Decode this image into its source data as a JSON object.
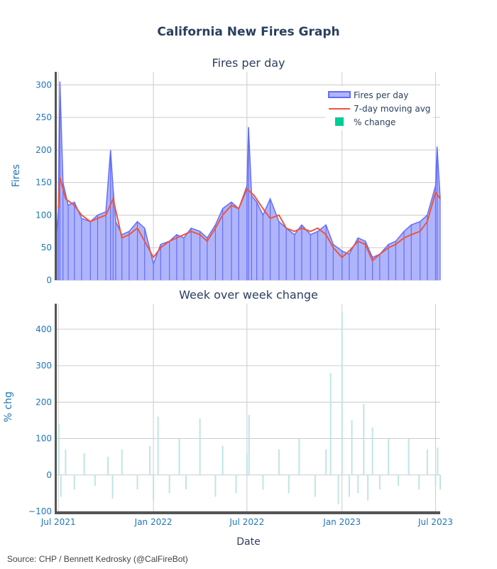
{
  "title": "California New Fires Graph",
  "source": "Source: CHP / Bennett Kedrosky (@CalFireBot)",
  "colors": {
    "bars": "#636efa",
    "area_fill": "#b0b5fb",
    "moving_avg": "#ef553b",
    "pct_change": "#00cc96",
    "pct_bars": "#bfe5e5",
    "grid": "#cccccc",
    "axis_line": "#555555"
  },
  "chart_data": [
    {
      "type": "area",
      "title": "Fires per day",
      "ylabel": "Fires",
      "xlabel": "",
      "ylim": [
        0,
        320
      ],
      "yticks": [
        0,
        50,
        100,
        150,
        200,
        250,
        300
      ],
      "grid": true,
      "legend_position": "top-right",
      "legend": [
        "Fires per day",
        "7-day moving avg",
        "% change"
      ],
      "x_start": "2021-06-28",
      "x_end": "2023-07-10",
      "series": [
        {
          "name": "Fires per day",
          "x": [
            "2021-06-28",
            "2021-07-01",
            "2021-07-04",
            "2021-07-10",
            "2021-07-20",
            "2021-08-01",
            "2021-08-15",
            "2021-09-01",
            "2021-09-15",
            "2021-10-01",
            "2021-10-10",
            "2021-10-15",
            "2021-10-20",
            "2021-11-01",
            "2021-11-15",
            "2021-12-01",
            "2021-12-15",
            "2022-01-01",
            "2022-01-15",
            "2022-02-01",
            "2022-02-15",
            "2022-03-01",
            "2022-03-15",
            "2022-04-01",
            "2022-04-15",
            "2022-05-01",
            "2022-05-15",
            "2022-06-01",
            "2022-06-15",
            "2022-07-01",
            "2022-07-04",
            "2022-07-10",
            "2022-07-20",
            "2022-08-01",
            "2022-08-15",
            "2022-09-01",
            "2022-09-15",
            "2022-10-01",
            "2022-10-15",
            "2022-11-01",
            "2022-11-15",
            "2022-12-01",
            "2022-12-15",
            "2023-01-01",
            "2023-01-15",
            "2023-02-01",
            "2023-02-15",
            "2023-03-01",
            "2023-03-15",
            "2023-04-01",
            "2023-04-15",
            "2023-05-01",
            "2023-05-15",
            "2023-06-01",
            "2023-06-15",
            "2023-07-01",
            "2023-07-04",
            "2023-07-10"
          ],
          "values": [
            75,
            110,
            305,
            150,
            115,
            120,
            95,
            90,
            100,
            105,
            200,
            140,
            90,
            70,
            75,
            90,
            80,
            25,
            55,
            60,
            70,
            65,
            80,
            75,
            65,
            85,
            110,
            120,
            110,
            145,
            235,
            130,
            120,
            100,
            125,
            90,
            80,
            70,
            85,
            70,
            75,
            85,
            55,
            45,
            40,
            65,
            60,
            35,
            40,
            55,
            60,
            75,
            85,
            90,
            100,
            145,
            205,
            125
          ]
        },
        {
          "name": "7-day moving avg",
          "x": [
            "2021-07-01",
            "2021-07-04",
            "2021-07-15",
            "2021-08-01",
            "2021-08-15",
            "2021-09-01",
            "2021-09-15",
            "2021-10-01",
            "2021-10-15",
            "2021-11-01",
            "2021-11-15",
            "2021-12-01",
            "2021-12-15",
            "2022-01-01",
            "2022-01-15",
            "2022-02-01",
            "2022-02-15",
            "2022-03-01",
            "2022-03-15",
            "2022-04-01",
            "2022-04-15",
            "2022-05-01",
            "2022-05-15",
            "2022-06-01",
            "2022-06-15",
            "2022-07-01",
            "2022-07-15",
            "2022-08-01",
            "2022-08-15",
            "2022-09-01",
            "2022-09-15",
            "2022-10-01",
            "2022-10-15",
            "2022-11-01",
            "2022-11-15",
            "2022-12-01",
            "2022-12-15",
            "2023-01-01",
            "2023-01-15",
            "2023-02-01",
            "2023-02-15",
            "2023-03-01",
            "2023-03-15",
            "2023-04-01",
            "2023-04-15",
            "2023-05-01",
            "2023-05-15",
            "2023-06-01",
            "2023-06-15",
            "2023-07-01",
            "2023-07-10"
          ],
          "values": [
            110,
            158,
            125,
            115,
            100,
            90,
            95,
            100,
            125,
            65,
            70,
            80,
            60,
            35,
            50,
            60,
            65,
            70,
            75,
            70,
            60,
            80,
            100,
            115,
            110,
            140,
            130,
            110,
            95,
            100,
            80,
            75,
            80,
            75,
            80,
            70,
            50,
            35,
            45,
            60,
            55,
            30,
            40,
            50,
            55,
            65,
            70,
            75,
            90,
            135,
            125
          ]
        }
      ]
    },
    {
      "type": "bar",
      "title": "Week over week change",
      "ylabel": "% chg",
      "xlabel": "Date",
      "ylim": [
        -100,
        470
      ],
      "yticks": [
        -100,
        0,
        100,
        200,
        300,
        400
      ],
      "grid": true,
      "xticks": [
        "Jul 2021",
        "Jan 2022",
        "Jul 2022",
        "Jan 2023",
        "Jul 2023"
      ],
      "series": [
        {
          "name": "% change",
          "x": [
            "2021-07-02",
            "2021-07-06",
            "2021-07-15",
            "2021-08-01",
            "2021-08-20",
            "2021-09-10",
            "2021-10-05",
            "2021-10-14",
            "2021-11-01",
            "2021-12-01",
            "2021-12-25",
            "2022-01-01",
            "2022-01-10",
            "2022-02-01",
            "2022-02-20",
            "2022-03-05",
            "2022-04-01",
            "2022-05-01",
            "2022-05-15",
            "2022-06-10",
            "2022-07-01",
            "2022-07-05",
            "2022-08-01",
            "2022-09-01",
            "2022-09-20",
            "2022-10-10",
            "2022-11-10",
            "2022-12-01",
            "2022-12-10",
            "2022-12-25",
            "2023-01-01",
            "2023-01-15",
            "2023-01-20",
            "2023-02-01",
            "2023-02-12",
            "2023-02-20",
            "2023-03-01",
            "2023-03-15",
            "2023-04-01",
            "2023-04-20",
            "2023-05-10",
            "2023-05-30",
            "2023-06-15",
            "2023-07-01",
            "2023-07-05",
            "2023-07-10"
          ],
          "values": [
            140,
            -60,
            70,
            -40,
            60,
            -30,
            50,
            -65,
            70,
            -40,
            80,
            -70,
            160,
            -50,
            100,
            -40,
            155,
            -60,
            80,
            -50,
            60,
            165,
            -40,
            70,
            -50,
            100,
            -60,
            70,
            280,
            -80,
            445,
            -60,
            150,
            -50,
            195,
            -70,
            130,
            -40,
            100,
            -30,
            100,
            -40,
            70,
            -30,
            75,
            -40
          ]
        }
      ]
    }
  ]
}
